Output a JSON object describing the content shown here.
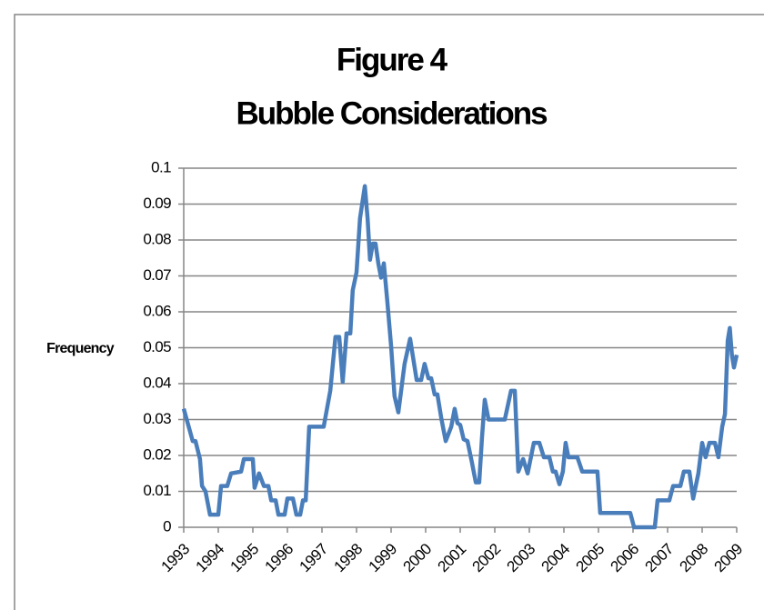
{
  "chart_data": {
    "type": "line",
    "title": "Figure 4",
    "subtitle": "Bubble Considerations",
    "ylabel": "Frequency",
    "xlim": [
      1993,
      2009
    ],
    "xticks": [
      1993,
      1994,
      1995,
      1996,
      1997,
      1998,
      1999,
      2000,
      2001,
      2002,
      2003,
      2004,
      2005,
      2006,
      2007,
      2008,
      2009
    ],
    "ylim": [
      0,
      0.1
    ],
    "yticks": [
      0,
      0.01,
      0.02,
      0.03,
      0.04,
      0.05,
      0.06,
      0.07,
      0.08,
      0.09,
      0.1
    ],
    "grid": true,
    "series": [
      {
        "name": "Frequency",
        "color": "#4a7ebb",
        "x": [
          1993.0,
          1993.26,
          1993.34,
          1993.47,
          1993.53,
          1993.63,
          1993.76,
          1994.0,
          1994.08,
          1994.26,
          1994.37,
          1994.66,
          1994.74,
          1995.0,
          1995.05,
          1995.18,
          1995.32,
          1995.45,
          1995.53,
          1995.66,
          1995.74,
          1995.92,
          1996.0,
          1996.16,
          1996.26,
          1996.37,
          1996.45,
          1996.53,
          1996.63,
          1996.76,
          1997.05,
          1997.24,
          1997.39,
          1997.5,
          1997.6,
          1997.71,
          1997.82,
          1997.89,
          1998.0,
          1998.1,
          1998.24,
          1998.32,
          1998.39,
          1998.47,
          1998.55,
          1998.63,
          1998.71,
          1998.79,
          1998.89,
          1999.0,
          1999.1,
          1999.21,
          1999.39,
          1999.55,
          1999.74,
          1999.87,
          1999.97,
          2000.08,
          2000.16,
          2000.26,
          2000.34,
          2000.45,
          2000.58,
          2000.74,
          2000.84,
          2000.92,
          2001.0,
          2001.1,
          2001.21,
          2001.34,
          2001.45,
          2001.55,
          2001.63,
          2001.71,
          2001.82,
          2002.29,
          2002.47,
          2002.58,
          2002.68,
          2002.82,
          2002.95,
          2003.13,
          2003.29,
          2003.42,
          2003.58,
          2003.68,
          2003.76,
          2003.87,
          2003.97,
          2004.05,
          2004.13,
          2004.39,
          2004.53,
          2004.97,
          2005.05,
          2005.92,
          2006.03,
          2006.63,
          2006.71,
          2007.05,
          2007.16,
          2007.37,
          2007.47,
          2007.63,
          2007.74,
          2007.89,
          2008.0,
          2008.1,
          2008.21,
          2008.37,
          2008.47,
          2008.58,
          2008.66,
          2008.74,
          2008.8,
          2008.86,
          2008.92,
          2009.0
        ],
        "values": [
          0.033,
          0.024,
          0.024,
          0.019,
          0.0115,
          0.01,
          0.0035,
          0.0035,
          0.0115,
          0.0115,
          0.015,
          0.0155,
          0.019,
          0.019,
          0.011,
          0.015,
          0.0115,
          0.0115,
          0.0075,
          0.0075,
          0.0035,
          0.0035,
          0.008,
          0.008,
          0.0035,
          0.0035,
          0.0075,
          0.0075,
          0.028,
          0.028,
          0.028,
          0.038,
          0.053,
          0.053,
          0.0405,
          0.054,
          0.054,
          0.066,
          0.071,
          0.086,
          0.095,
          0.086,
          0.0745,
          0.079,
          0.079,
          0.0735,
          0.0695,
          0.0735,
          0.063,
          0.0505,
          0.0365,
          0.032,
          0.0455,
          0.0525,
          0.041,
          0.041,
          0.0455,
          0.0415,
          0.0415,
          0.037,
          0.037,
          0.0305,
          0.024,
          0.028,
          0.033,
          0.029,
          0.0285,
          0.0245,
          0.024,
          0.018,
          0.0125,
          0.0125,
          0.025,
          0.0355,
          0.03,
          0.03,
          0.038,
          0.038,
          0.0155,
          0.019,
          0.015,
          0.0235,
          0.0235,
          0.0195,
          0.0195,
          0.0155,
          0.0155,
          0.012,
          0.0155,
          0.0235,
          0.0195,
          0.0195,
          0.0155,
          0.0155,
          0.004,
          0.004,
          0,
          0,
          0.0075,
          0.0075,
          0.0115,
          0.0115,
          0.0155,
          0.0155,
          0.008,
          0.015,
          0.0235,
          0.0195,
          0.0235,
          0.0235,
          0.0195,
          0.028,
          0.0315,
          0.052,
          0.0555,
          0.048,
          0.0445,
          0.048
        ]
      }
    ]
  }
}
